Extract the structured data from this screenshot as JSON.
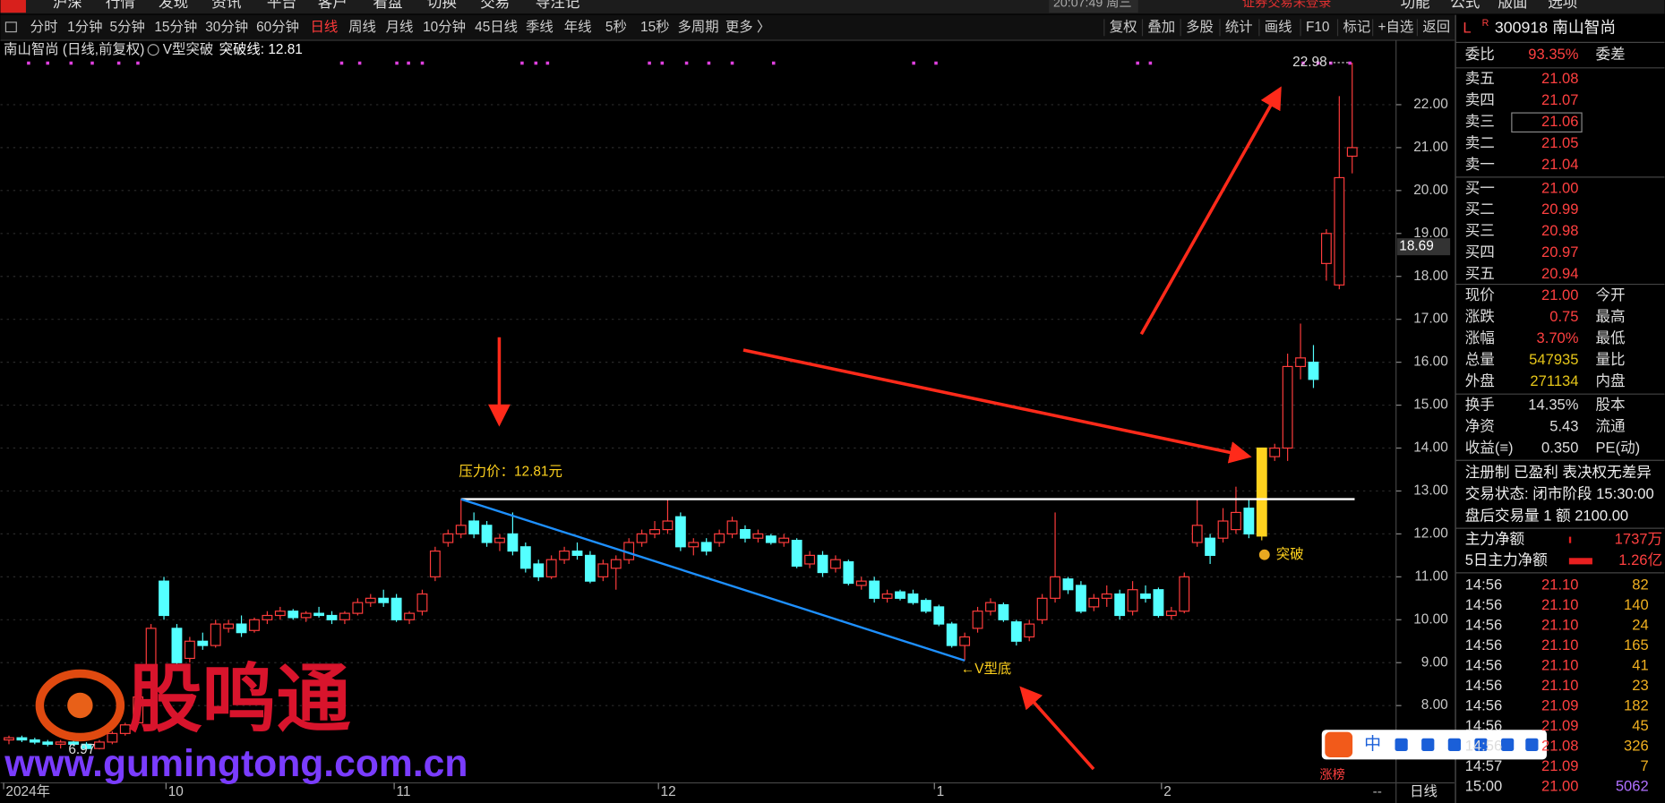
{
  "menu": {
    "items": [
      "沪深",
      "行情",
      "发现",
      "资讯",
      "平台",
      "客户",
      "看盘",
      "切换",
      "交易",
      "导注记"
    ],
    "clock": "20:07:49 周三",
    "login": "证券交易未登录",
    "right": [
      "功能",
      "公式",
      "版面",
      "选项"
    ]
  },
  "toolbar": {
    "periods": [
      "分时",
      "1分钟",
      "5分钟",
      "15分钟",
      "30分钟",
      "60分钟",
      "日线",
      "周线",
      "月线",
      "10分钟",
      "45日线",
      "季线",
      "年线",
      "5秒",
      "15秒",
      "多周期",
      "更多 〉"
    ],
    "active": 6,
    "tools": [
      "复权",
      "叠加",
      "多股",
      "统计",
      "画线",
      "F10",
      "标记",
      "+自选",
      "返回"
    ]
  },
  "chart_data": {
    "type": "candlestick",
    "title": "南山智尚 (日线,前复权)",
    "indicator": "V型突破",
    "indicator_line": "突破线: 12.81",
    "ylim": [
      6.2,
      23.5
    ],
    "yticks": [
      {
        "value": 8,
        "label": "8.00"
      },
      {
        "value": 9,
        "label": "9.00"
      },
      {
        "value": 10,
        "label": "10.00"
      },
      {
        "value": 11,
        "label": "11.00"
      },
      {
        "value": 12,
        "label": "12.00"
      },
      {
        "value": 13,
        "label": "13.00"
      },
      {
        "value": 14,
        "label": "14.00"
      },
      {
        "value": 15,
        "label": "15.00"
      },
      {
        "value": 16,
        "label": "16.00"
      },
      {
        "value": 17,
        "label": "17.00"
      },
      {
        "value": 18,
        "label": "18.00"
      },
      {
        "value": 19,
        "label": "19.00"
      },
      {
        "value": 20,
        "label": "20.00"
      },
      {
        "value": 21,
        "label": "21.00"
      },
      {
        "value": 22,
        "label": "22.00"
      }
    ],
    "xlabels": [
      "2024年",
      "10",
      "11",
      "12",
      "1",
      "2"
    ],
    "up_color": "#ff3c3c",
    "down_color": "#54ffff",
    "breakout_color": "#ffd21e",
    "breakout_index": 97,
    "candles": [
      [
        7.2,
        7.3,
        7.1,
        7.25
      ],
      [
        7.25,
        7.3,
        7.15,
        7.2
      ],
      [
        7.2,
        7.25,
        7.1,
        7.15
      ],
      [
        7.15,
        7.2,
        7.05,
        7.1
      ],
      [
        7.1,
        7.2,
        7.0,
        7.15
      ],
      [
        7.15,
        7.2,
        7.05,
        7.1
      ],
      [
        7.1,
        7.15,
        6.97,
        7.0
      ],
      [
        7.0,
        7.2,
        6.98,
        7.15
      ],
      [
        7.15,
        7.4,
        7.1,
        7.35
      ],
      [
        7.35,
        7.6,
        7.3,
        7.55
      ],
      [
        7.6,
        8.3,
        7.55,
        8.2
      ],
      [
        8.9,
        9.9,
        8.8,
        9.8
      ],
      [
        10.9,
        11.0,
        10.0,
        10.1
      ],
      [
        9.8,
        9.9,
        8.9,
        9.0
      ],
      [
        9.1,
        9.6,
        9.0,
        9.5
      ],
      [
        9.5,
        9.7,
        9.3,
        9.4
      ],
      [
        9.4,
        10.0,
        9.35,
        9.9
      ],
      [
        9.8,
        10.0,
        9.7,
        9.9
      ],
      [
        9.9,
        10.1,
        9.6,
        9.7
      ],
      [
        9.75,
        10.05,
        9.7,
        10.0
      ],
      [
        10.0,
        10.2,
        9.9,
        10.1
      ],
      [
        10.1,
        10.3,
        10.0,
        10.2
      ],
      [
        10.2,
        10.25,
        10.0,
        10.05
      ],
      [
        10.05,
        10.2,
        9.95,
        10.15
      ],
      [
        10.15,
        10.3,
        10.05,
        10.1
      ],
      [
        10.1,
        10.2,
        9.9,
        10.0
      ],
      [
        10.0,
        10.2,
        9.9,
        10.15
      ],
      [
        10.15,
        10.5,
        10.1,
        10.4
      ],
      [
        10.4,
        10.6,
        10.3,
        10.5
      ],
      [
        10.5,
        10.7,
        10.3,
        10.4
      ],
      [
        10.5,
        10.6,
        9.95,
        10.0
      ],
      [
        10.0,
        10.2,
        9.9,
        10.15
      ],
      [
        10.2,
        10.7,
        10.1,
        10.6
      ],
      [
        11.0,
        11.7,
        10.9,
        11.6
      ],
      [
        11.8,
        12.1,
        11.7,
        12.0
      ],
      [
        12.0,
        12.81,
        11.9,
        12.2
      ],
      [
        12.3,
        12.5,
        11.9,
        12.0
      ],
      [
        12.2,
        12.3,
        11.7,
        11.8
      ],
      [
        11.8,
        12.0,
        11.6,
        11.9
      ],
      [
        12.0,
        12.5,
        11.5,
        11.6
      ],
      [
        11.7,
        11.8,
        11.1,
        11.2
      ],
      [
        11.3,
        11.4,
        10.9,
        11.0
      ],
      [
        11.0,
        11.5,
        10.95,
        11.4
      ],
      [
        11.4,
        11.7,
        11.3,
        11.6
      ],
      [
        11.6,
        11.8,
        11.4,
        11.5
      ],
      [
        11.5,
        11.6,
        10.85,
        10.9
      ],
      [
        11.0,
        11.4,
        10.9,
        11.3
      ],
      [
        11.2,
        11.5,
        10.7,
        11.4
      ],
      [
        11.4,
        11.9,
        11.3,
        11.8
      ],
      [
        11.8,
        12.1,
        11.7,
        12.0
      ],
      [
        12.0,
        12.3,
        11.9,
        12.1
      ],
      [
        12.1,
        12.8,
        12.0,
        12.3
      ],
      [
        12.4,
        12.5,
        11.6,
        11.7
      ],
      [
        11.7,
        11.9,
        11.5,
        11.8
      ],
      [
        11.8,
        11.9,
        11.5,
        11.6
      ],
      [
        11.8,
        12.1,
        11.7,
        12.0
      ],
      [
        12.0,
        12.4,
        11.9,
        12.3
      ],
      [
        12.1,
        12.2,
        11.8,
        11.9
      ],
      [
        11.9,
        12.1,
        11.8,
        12.0
      ],
      [
        11.95,
        12.0,
        11.75,
        11.8
      ],
      [
        11.8,
        12.0,
        11.7,
        11.9
      ],
      [
        11.85,
        11.9,
        11.2,
        11.25
      ],
      [
        11.3,
        11.6,
        11.2,
        11.5
      ],
      [
        11.5,
        11.6,
        11.0,
        11.1
      ],
      [
        11.2,
        11.5,
        11.1,
        11.4
      ],
      [
        11.35,
        11.4,
        10.8,
        10.85
      ],
      [
        10.8,
        11.0,
        10.7,
        10.9
      ],
      [
        10.9,
        11.0,
        10.4,
        10.5
      ],
      [
        10.5,
        10.7,
        10.4,
        10.6
      ],
      [
        10.65,
        10.7,
        10.45,
        10.5
      ],
      [
        10.6,
        10.7,
        10.35,
        10.4
      ],
      [
        10.45,
        10.5,
        10.15,
        10.2
      ],
      [
        10.3,
        10.35,
        9.85,
        9.9
      ],
      [
        9.9,
        9.95,
        9.35,
        9.4
      ],
      [
        9.4,
        9.7,
        9.05,
        9.6
      ],
      [
        9.8,
        10.3,
        9.7,
        10.2
      ],
      [
        10.2,
        10.5,
        10.1,
        10.4
      ],
      [
        10.35,
        10.4,
        9.95,
        10.0
      ],
      [
        9.95,
        10.0,
        9.4,
        9.5
      ],
      [
        9.6,
        10.0,
        9.5,
        9.9
      ],
      [
        10.0,
        10.6,
        9.9,
        10.5
      ],
      [
        10.5,
        12.5,
        10.4,
        11.0
      ],
      [
        10.95,
        11.0,
        10.6,
        10.7
      ],
      [
        10.8,
        10.9,
        10.15,
        10.2
      ],
      [
        10.3,
        10.6,
        10.2,
        10.5
      ],
      [
        10.5,
        10.8,
        10.3,
        10.6
      ],
      [
        10.6,
        10.7,
        10.0,
        10.1
      ],
      [
        10.2,
        10.9,
        10.1,
        10.7
      ],
      [
        10.6,
        10.8,
        10.4,
        10.5
      ],
      [
        10.7,
        10.75,
        10.05,
        10.1
      ],
      [
        10.1,
        10.3,
        10.0,
        10.2
      ],
      [
        10.2,
        11.1,
        10.15,
        11.0
      ],
      [
        11.8,
        12.8,
        11.7,
        12.2
      ],
      [
        11.9,
        12.0,
        11.3,
        11.5
      ],
      [
        11.9,
        12.6,
        11.8,
        12.3
      ],
      [
        12.1,
        13.1,
        12.0,
        12.5
      ],
      [
        12.6,
        12.8,
        11.9,
        12.0
      ],
      [
        11.95,
        14.0,
        11.85,
        14.0
      ],
      [
        13.8,
        14.1,
        13.7,
        14.0
      ],
      [
        14.0,
        16.2,
        13.7,
        15.9
      ],
      [
        15.9,
        16.9,
        15.6,
        16.1
      ],
      [
        16.0,
        16.4,
        15.4,
        15.6
      ],
      [
        18.3,
        19.1,
        17.9,
        19.0
      ],
      [
        17.8,
        22.2,
        17.7,
        20.3
      ],
      [
        20.8,
        22.98,
        20.4,
        21.0
      ]
    ],
    "pressure": 12.81,
    "pressure_text": "压力价：12.81元",
    "v_low": 9.05,
    "v_text": "←V型底",
    "breakout_text": "突破",
    "high_label": 22.98,
    "low_label": 6.97,
    "cursor": 18.69,
    "period_label": "日线",
    "corner": "--",
    "rank_tag": "涨榜"
  },
  "watermark": {
    "brand": "股鸣通",
    "url": "www.gumingtong.com.cn"
  },
  "ime": "中",
  "quote": {
    "header": "300918 南山智尚",
    "flag1": "L",
    "flag2": "R",
    "ratio": [
      "委比",
      "93.35%",
      "委差"
    ],
    "book": [
      [
        "卖五",
        "21.08"
      ],
      [
        "卖四",
        "21.07"
      ],
      [
        "卖三",
        "21.06"
      ],
      [
        "卖二",
        "21.05"
      ],
      [
        "卖一",
        "21.04"
      ],
      [
        "买一",
        "21.00"
      ],
      [
        "买二",
        "20.99"
      ],
      [
        "买三",
        "20.98"
      ],
      [
        "买四",
        "20.97"
      ],
      [
        "买五",
        "20.94"
      ]
    ],
    "stats": [
      [
        "现价",
        "21.00",
        "今开"
      ],
      [
        "涨跌",
        "0.75",
        "最高"
      ],
      [
        "涨幅",
        "3.70%",
        "最低"
      ],
      [
        "总量",
        "547935",
        "量比"
      ],
      [
        "外盘",
        "271134",
        "内盘"
      ],
      [
        "换手",
        "14.35%",
        "股本"
      ],
      [
        "净资",
        "5.43",
        "流通"
      ],
      [
        "收益(≡)",
        "0.350",
        "PE(动)"
      ]
    ],
    "info": [
      "注册制 已盈利 表决权无差异",
      "交易状态: 闭市阶段 15:30:00",
      "盘后交易量 1 额 2100.00"
    ],
    "flows": [
      [
        "主力净额",
        "1737万"
      ],
      [
        "5日主力净额",
        "1.26亿"
      ]
    ]
  },
  "trades": [
    [
      "14:56",
      "21.10",
      "82"
    ],
    [
      "14:56",
      "21.10",
      "140"
    ],
    [
      "14:56",
      "21.10",
      "24"
    ],
    [
      "14:56",
      "21.10",
      "165"
    ],
    [
      "14:56",
      "21.10",
      "41"
    ],
    [
      "14:56",
      "21.10",
      "23"
    ],
    [
      "14:56",
      "21.09",
      "182"
    ],
    [
      "14:56",
      "21.09",
      "45"
    ],
    [
      "14:56",
      "21.08",
      "326"
    ],
    [
      "14:57",
      "21.09",
      "7"
    ],
    [
      "15:00",
      "21.00",
      "5062"
    ]
  ]
}
